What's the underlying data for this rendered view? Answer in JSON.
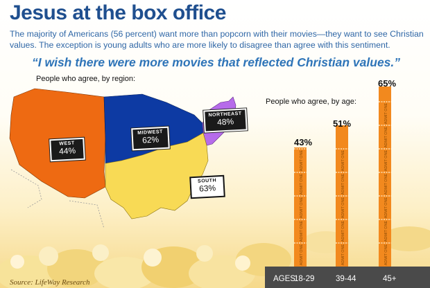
{
  "title": "Jesus at the box office",
  "subtitle": "The majority of Americans (56 percent) want more than popcorn with their  movies—they want to see Christian values. The exception is young  adults who are more likely to disagree than agree with this sentiment.",
  "quote": "“I wish there were more movies that reflected Christian values.”",
  "source": "Source: LifeWay Research",
  "ticket_text": "ADMIT ONE",
  "colors": {
    "west": "#ee6a12",
    "midwest": "#0d3aa3",
    "northeast": "#b66bea",
    "south": "#f8da55",
    "bar": "#f2891e",
    "title": "#1f4f8f"
  },
  "chart_data": [
    {
      "type": "map",
      "title": "People who agree, by region:",
      "regions": [
        {
          "name": "WEST",
          "label": "44%",
          "value": 44
        },
        {
          "name": "MIDWEST",
          "label": "62%",
          "value": 62
        },
        {
          "name": "NORTHEAST",
          "label": "48%",
          "value": 48
        },
        {
          "name": "SOUTH",
          "label": "63%",
          "value": 63
        }
      ]
    },
    {
      "type": "bar",
      "title": "People who agree, by age:",
      "xlabel": "AGES:",
      "categories": [
        "18-29",
        "39-44",
        "45+"
      ],
      "values": [
        43,
        51,
        65
      ],
      "labels": [
        "43%",
        "51%",
        "65%"
      ]
    }
  ]
}
